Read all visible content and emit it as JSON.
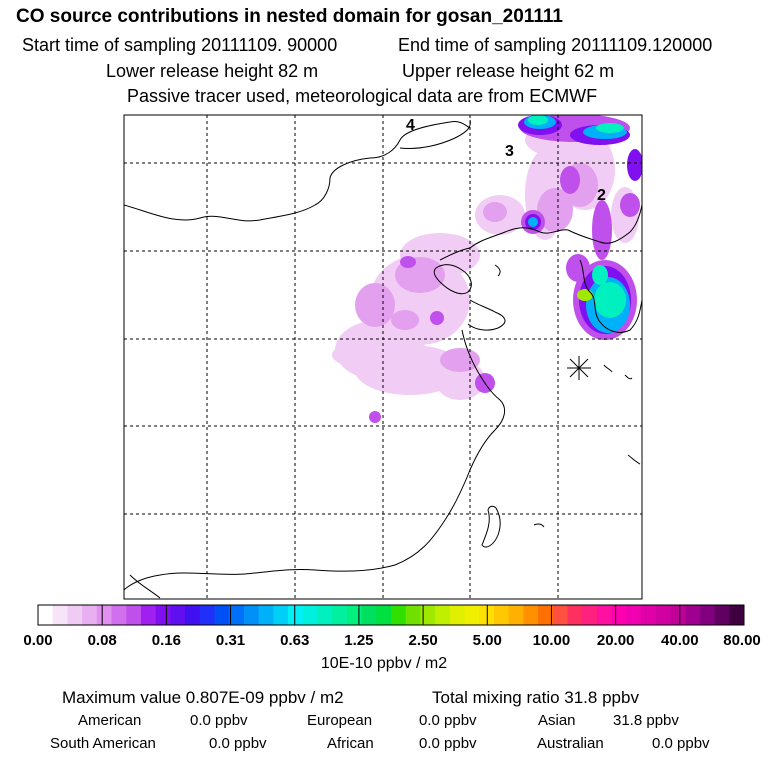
{
  "header": {
    "title": "CO  source contributions in nested domain for gosan_201111",
    "start_sampling": "Start time of sampling 20111109. 90000",
    "end_sampling": "End time of sampling 20111109.120000",
    "lower_release": "Lower release height   82 m",
    "upper_release": "Upper release height   62 m",
    "tracer_note": "Passive tracer used, meteorological data are from ECMWF"
  },
  "map": {
    "labels": [
      "4",
      "3",
      "2"
    ],
    "receptor_symbol": "asterisk-marker"
  },
  "colorbar": {
    "tick_labels": [
      "0.00",
      "0.08",
      "0.16",
      "0.31",
      "0.63",
      "1.25",
      "2.50",
      "5.00",
      "10.00",
      "20.00",
      "40.00",
      "80.00"
    ],
    "units": "10E-10 ppbv / m2",
    "colors": [
      "#ffffff",
      "#f8e4f8",
      "#f0ccf4",
      "#e8b0f0",
      "#e090ee",
      "#d070ec",
      "#c050ec",
      "#a020f0",
      "#8010f0",
      "#6010f0",
      "#4010f0",
      "#2030f8",
      "#0050f8",
      "#0070f8",
      "#0090f8",
      "#00b0f8",
      "#00d0f8",
      "#00f0f8",
      "#00f0e0",
      "#00f0c0",
      "#00f0a0",
      "#00f080",
      "#00e060",
      "#00e040",
      "#30e000",
      "#70e000",
      "#a0e800",
      "#c0f000",
      "#e0f000",
      "#f0f000",
      "#ffe000",
      "#ffc800",
      "#ffb000",
      "#ff9000",
      "#ff7000",
      "#ff5040",
      "#ff3060",
      "#ff2080",
      "#ff10a0",
      "#ff00b0",
      "#f000b0",
      "#e000a8",
      "#d000a0",
      "#c00098",
      "#a00090",
      "#800080",
      "#600060",
      "#400040"
    ]
  },
  "summary": {
    "max_value": "Maximum value  0.807E-09 ppbv / m2",
    "total_mixing": "Total mixing ratio      31.8 ppbv"
  },
  "regions": [
    {
      "name": "American",
      "value": "0.0 ppbv"
    },
    {
      "name": "European",
      "value": "0.0 ppbv"
    },
    {
      "name": "Asian",
      "value": "31.8 ppbv"
    },
    {
      "name": "South American",
      "value": "0.0 ppbv"
    },
    {
      "name": "African",
      "value": "0.0 ppbv"
    },
    {
      "name": "Australian",
      "value": "0.0 ppbv"
    }
  ]
}
